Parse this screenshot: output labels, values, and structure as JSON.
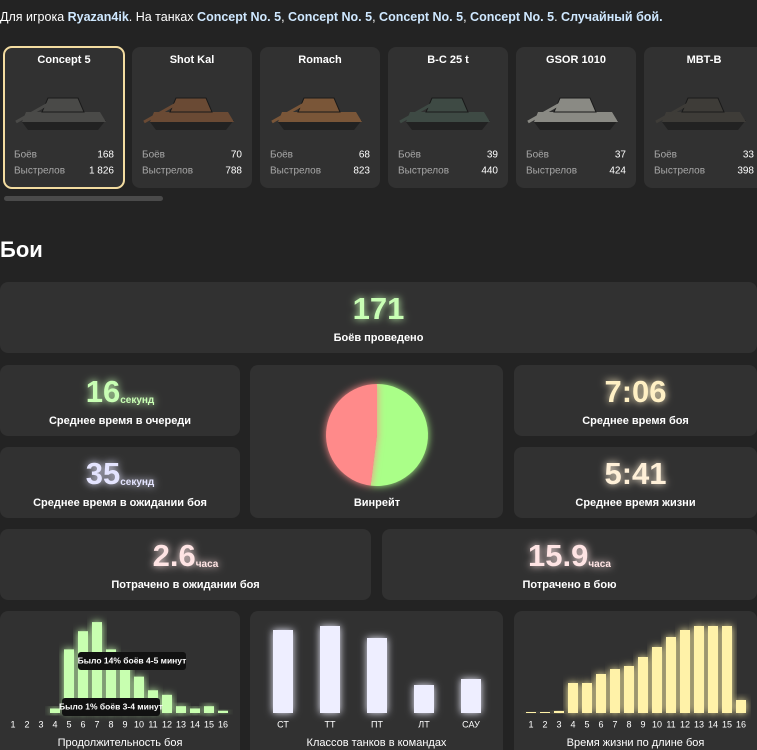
{
  "header": {
    "parts": [
      {
        "text": "Для игрока ",
        "highlight": false
      },
      {
        "text": "Ryazan4ik",
        "highlight": true
      },
      {
        "text": ". На танках ",
        "highlight": false
      },
      {
        "text": "Concept No. 5",
        "highlight": true
      },
      {
        "text": ", ",
        "highlight": false
      },
      {
        "text": "Concept No. 5",
        "highlight": true
      },
      {
        "text": ", ",
        "highlight": false
      },
      {
        "text": "Concept No. 5",
        "highlight": true
      },
      {
        "text": ", ",
        "highlight": false
      },
      {
        "text": "Concept No. 5",
        "highlight": true
      },
      {
        "text": ". ",
        "highlight": false
      },
      {
        "text": "Случайный бой.",
        "highlight": true
      }
    ]
  },
  "tanks": {
    "labels": {
      "battles": "Боёв",
      "shots": "Выстрелов"
    },
    "items": [
      {
        "name": "Concept 5",
        "battles": 168,
        "shots": "1 826",
        "selected": true,
        "color": "#4a4a48"
      },
      {
        "name": "Shot Kal",
        "battles": 70,
        "shots": 788,
        "selected": false,
        "color": "#6a4a34"
      },
      {
        "name": "Romach",
        "battles": 68,
        "shots": 823,
        "selected": false,
        "color": "#7a5638"
      },
      {
        "name": "B-C 25 t",
        "battles": 39,
        "shots": 440,
        "selected": false,
        "color": "#3e4a44"
      },
      {
        "name": "GSOR 1010",
        "battles": 37,
        "shots": 424,
        "selected": false,
        "color": "#8a8a84"
      },
      {
        "name": "MBT-B",
        "battles": 33,
        "shots": 398,
        "selected": false,
        "color": "#3e3c38"
      }
    ]
  },
  "section_title": "Бои",
  "stats": {
    "battles": {
      "value": 171,
      "label": "Боёв проведено",
      "color": "#c8ffb4"
    },
    "queue": {
      "value": 16,
      "unit": "секунд",
      "label": "Среднее время в очереди",
      "color": "#c8ffb4"
    },
    "wait": {
      "value": 35,
      "unit": "секунд",
      "label": "Среднее время в ожидании боя",
      "color": "#e4e4ff"
    },
    "battle_time": {
      "value": "7:06",
      "label": "Среднее время боя",
      "color": "#fff0c4"
    },
    "life_time": {
      "value": "5:41",
      "label": "Среднее время жизни",
      "color": "#fff0d8"
    },
    "spent_wait": {
      "value": 2.6,
      "unit": "часа",
      "label": "Потрачено в ожидании боя",
      "color": "#ffe4e4"
    },
    "spent_battle": {
      "value": 15.9,
      "unit": "часа",
      "label": "Потрачено в бою",
      "color": "#ffe4e4"
    }
  },
  "winrate": {
    "type": "pie",
    "label": "Винрейт",
    "values": [
      52,
      48
    ],
    "colors": [
      "#aaff88",
      "#ff8a8a"
    ]
  },
  "charts": [
    {
      "type": "bar",
      "title": "Продолжительность боя",
      "color": "#c8ffb0",
      "categories": [
        "1",
        "2",
        "3",
        "4",
        "5",
        "6",
        "7",
        "8",
        "9",
        "10",
        "11",
        "12",
        "13",
        "14",
        "15",
        "16"
      ],
      "values": [
        0,
        0,
        0,
        1,
        14,
        18,
        20,
        14,
        12,
        8,
        5,
        4,
        1.5,
        1,
        1.5,
        0.5
      ],
      "ylim": [
        0,
        22
      ],
      "annotations": [
        "Было 14% боёв 4-5 минут",
        "Было 1% боёв 3-4 минут"
      ]
    },
    {
      "type": "bar",
      "title": "Классов танков в командах",
      "color": "#eeeeff",
      "categories": [
        "СТ",
        "ТТ",
        "ПТ",
        "ЛТ",
        "САУ"
      ],
      "values": [
        83,
        87,
        75,
        28,
        34
      ],
      "ylim": [
        0,
        100
      ]
    },
    {
      "type": "bar",
      "title": "Время жизни по длине боя",
      "color": "#fff2a8",
      "categories": [
        "1",
        "2",
        "3",
        "4",
        "5",
        "6",
        "7",
        "8",
        "9",
        "10",
        "11",
        "12",
        "13",
        "14",
        "15",
        "16"
      ],
      "values": [
        1,
        1,
        2,
        30,
        30,
        39,
        44,
        47,
        56,
        66,
        76,
        83,
        87,
        87,
        87,
        13
      ],
      "ylim": [
        0,
        100
      ]
    }
  ]
}
